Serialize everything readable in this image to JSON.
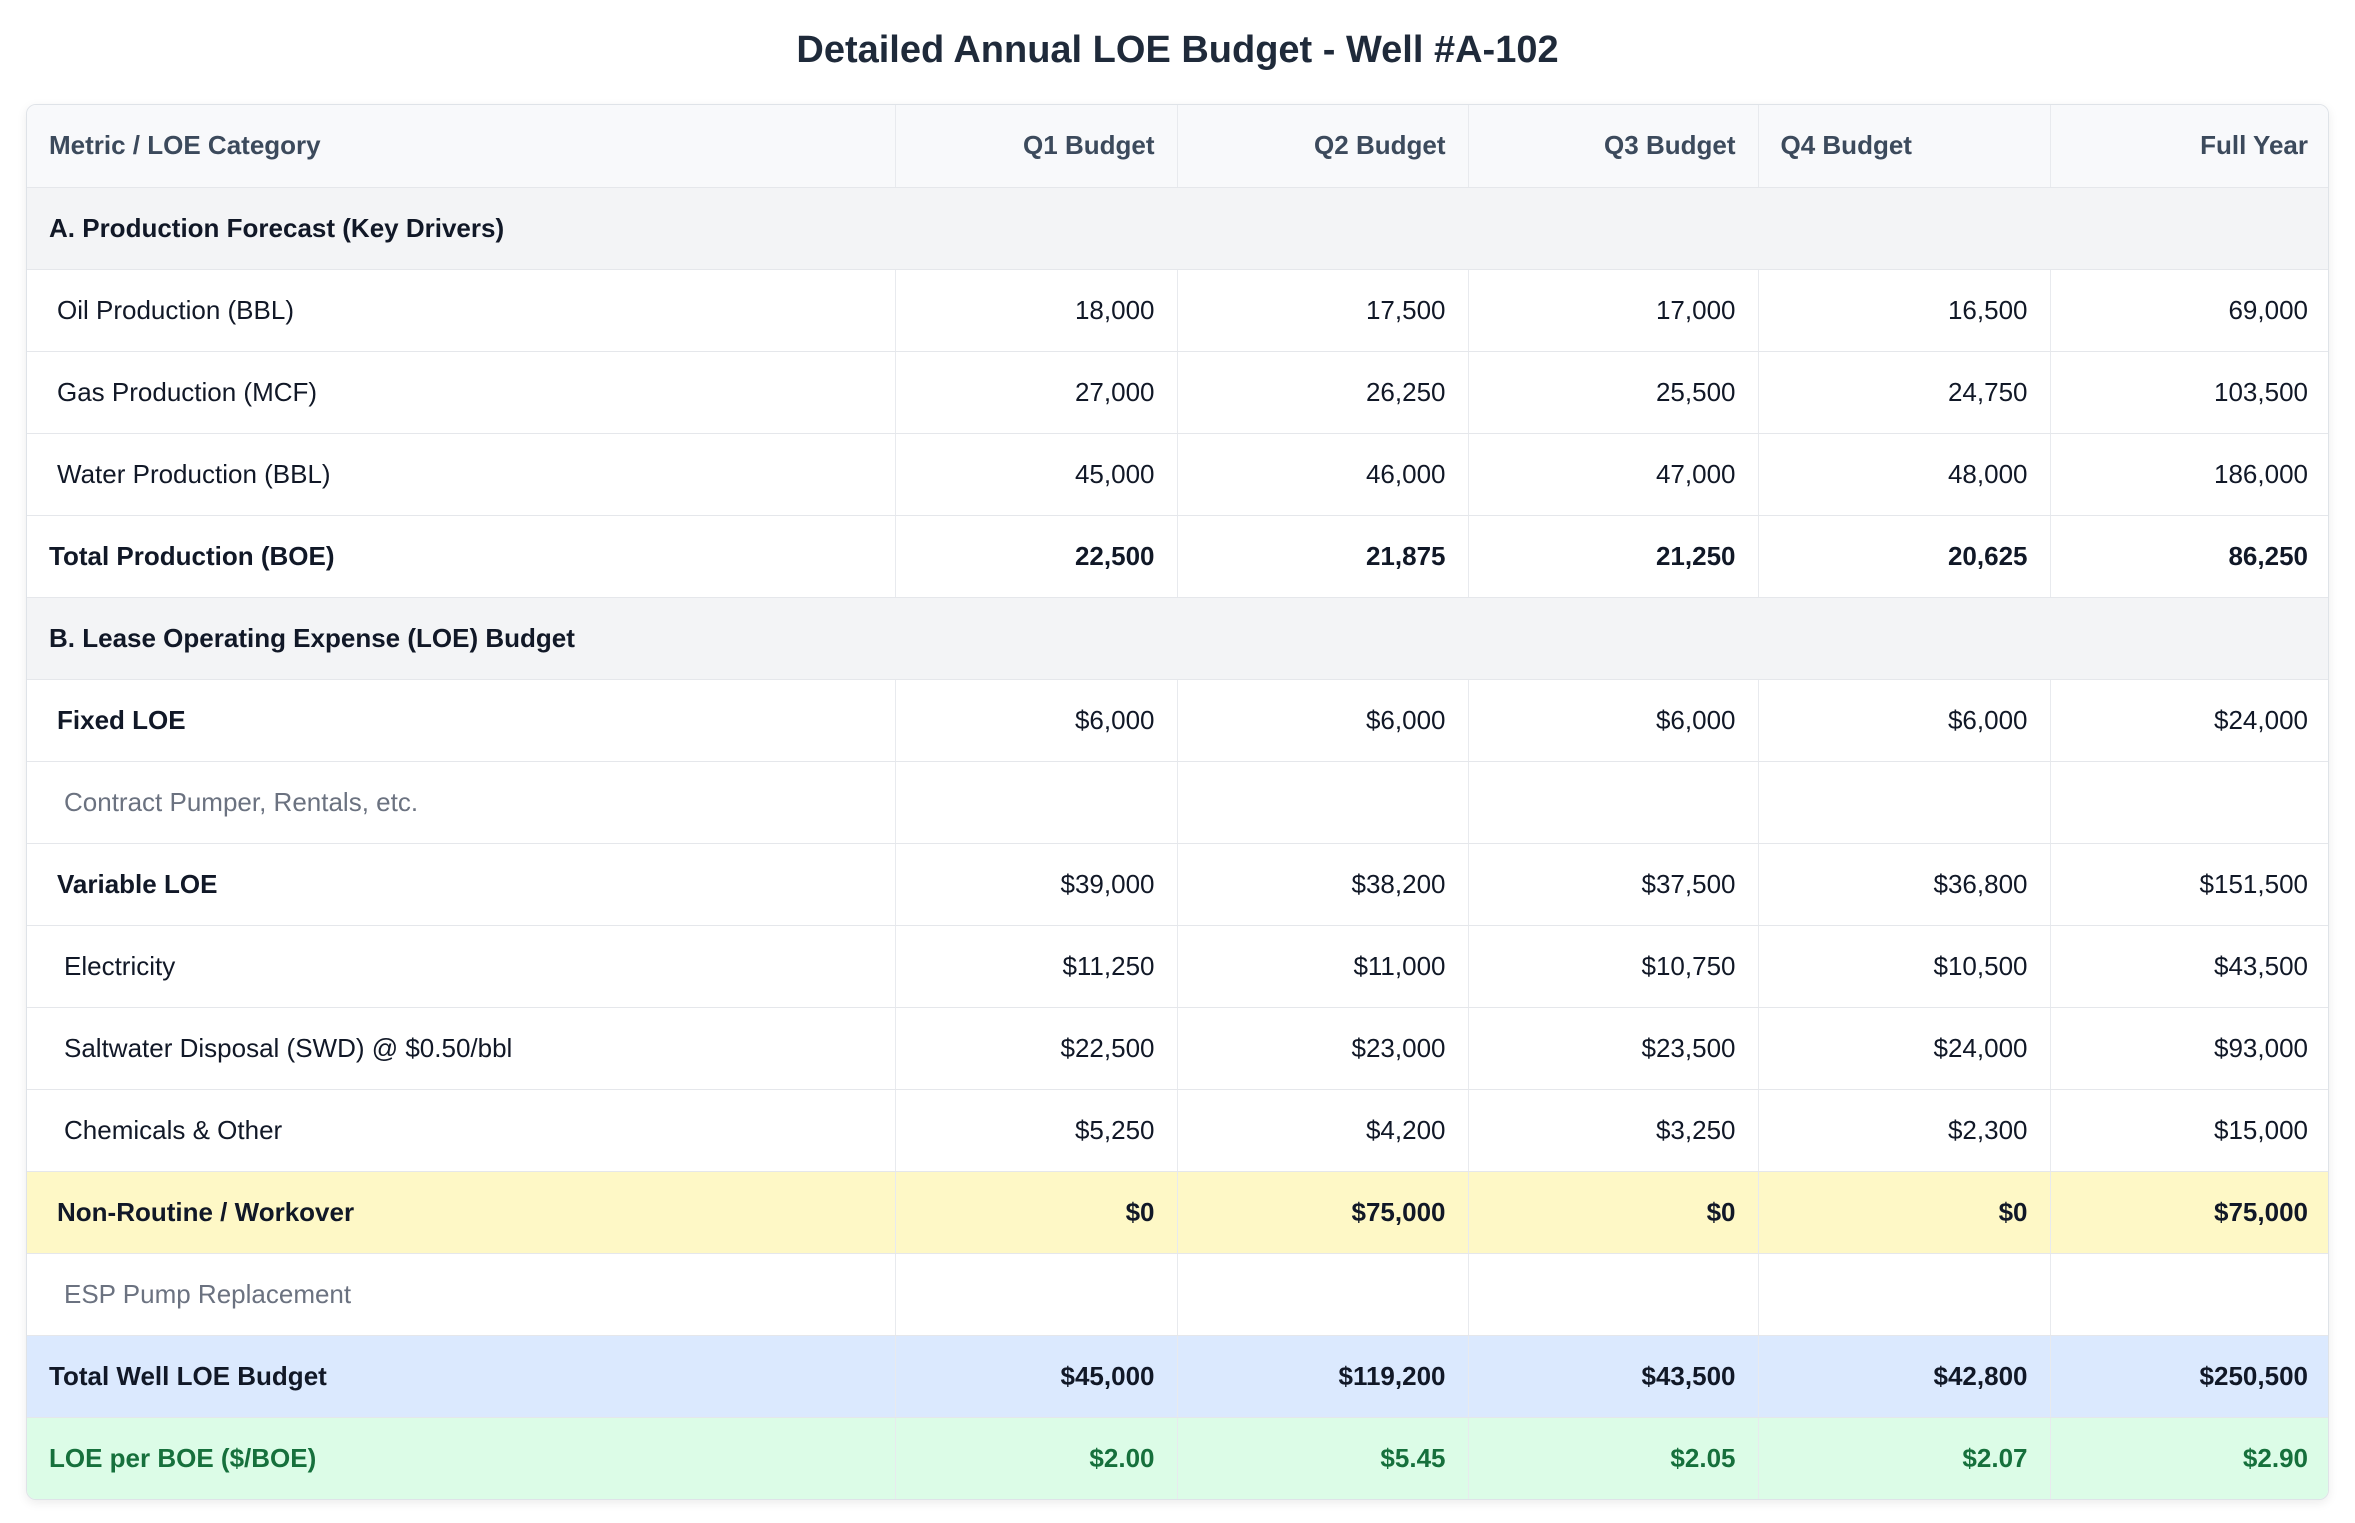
{
  "title": "Detailed Annual LOE Budget - Well #A-102",
  "headers": [
    "Metric / LOE Category",
    "Q1 Budget",
    "Q2 Budget",
    "Q3 Budget",
    "Q4 Budget",
    "Full Year"
  ],
  "sections": {
    "production": "A. Production Forecast (Key Drivers)",
    "loe": "B. Lease Operating Expense (LOE) Budget"
  },
  "rows": {
    "oil": {
      "label": "Oil Production (BBL)",
      "values": [
        "18,000",
        "17,500",
        "17,000",
        "16,500",
        "69,000"
      ]
    },
    "gas": {
      "label": "Gas Production (MCF)",
      "values": [
        "27,000",
        "26,250",
        "25,500",
        "24,750",
        "103,500"
      ]
    },
    "water": {
      "label": "Water Production (BBL)",
      "values": [
        "45,000",
        "46,000",
        "47,000",
        "48,000",
        "186,000"
      ]
    },
    "total_production": {
      "label": "Total Production (BOE)",
      "values": [
        "22,500",
        "21,875",
        "21,250",
        "20,625",
        "86,250"
      ]
    },
    "fixed": {
      "label": "Fixed LOE",
      "values": [
        "$6,000",
        "$6,000",
        "$6,000",
        "$6,000",
        "$24,000"
      ]
    },
    "fixed_note": {
      "label": "Contract Pumper, Rentals, etc."
    },
    "variable": {
      "label": "Variable LOE",
      "values": [
        "$39,000",
        "$38,200",
        "$37,500",
        "$36,800",
        "$151,500"
      ]
    },
    "electricity": {
      "label": "Electricity",
      "values": [
        "$11,250",
        "$11,000",
        "$10,750",
        "$10,500",
        "$43,500"
      ]
    },
    "swd": {
      "label": "Saltwater Disposal (SWD) @ $0.50/bbl",
      "values": [
        "$22,500",
        "$23,000",
        "$23,500",
        "$24,000",
        "$93,000"
      ]
    },
    "chemicals": {
      "label": "Chemicals & Other",
      "values": [
        "$5,250",
        "$4,200",
        "$3,250",
        "$2,300",
        "$15,000"
      ]
    },
    "workover": {
      "label": "Non-Routine / Workover",
      "values": [
        "$0",
        "$75,000",
        "$0",
        "$0",
        "$75,000"
      ]
    },
    "workover_note": {
      "label": "ESP Pump Replacement"
    },
    "total_loe": {
      "label": "Total Well LOE Budget",
      "values": [
        "$45,000",
        "$119,200",
        "$43,500",
        "$42,800",
        "$250,500"
      ]
    },
    "loe_per_boe": {
      "label": "LOE per BOE ($/BOE)",
      "values": [
        "$2.00",
        "$5.45",
        "$2.05",
        "$2.07",
        "$2.90"
      ]
    }
  },
  "colors": {
    "workover_bg": "#fef8c6",
    "total_bg": "#dbe9fe",
    "perboe_bg": "#dcfce7",
    "perboe_text": "#16703c",
    "section_bg": "#f3f4f6"
  }
}
